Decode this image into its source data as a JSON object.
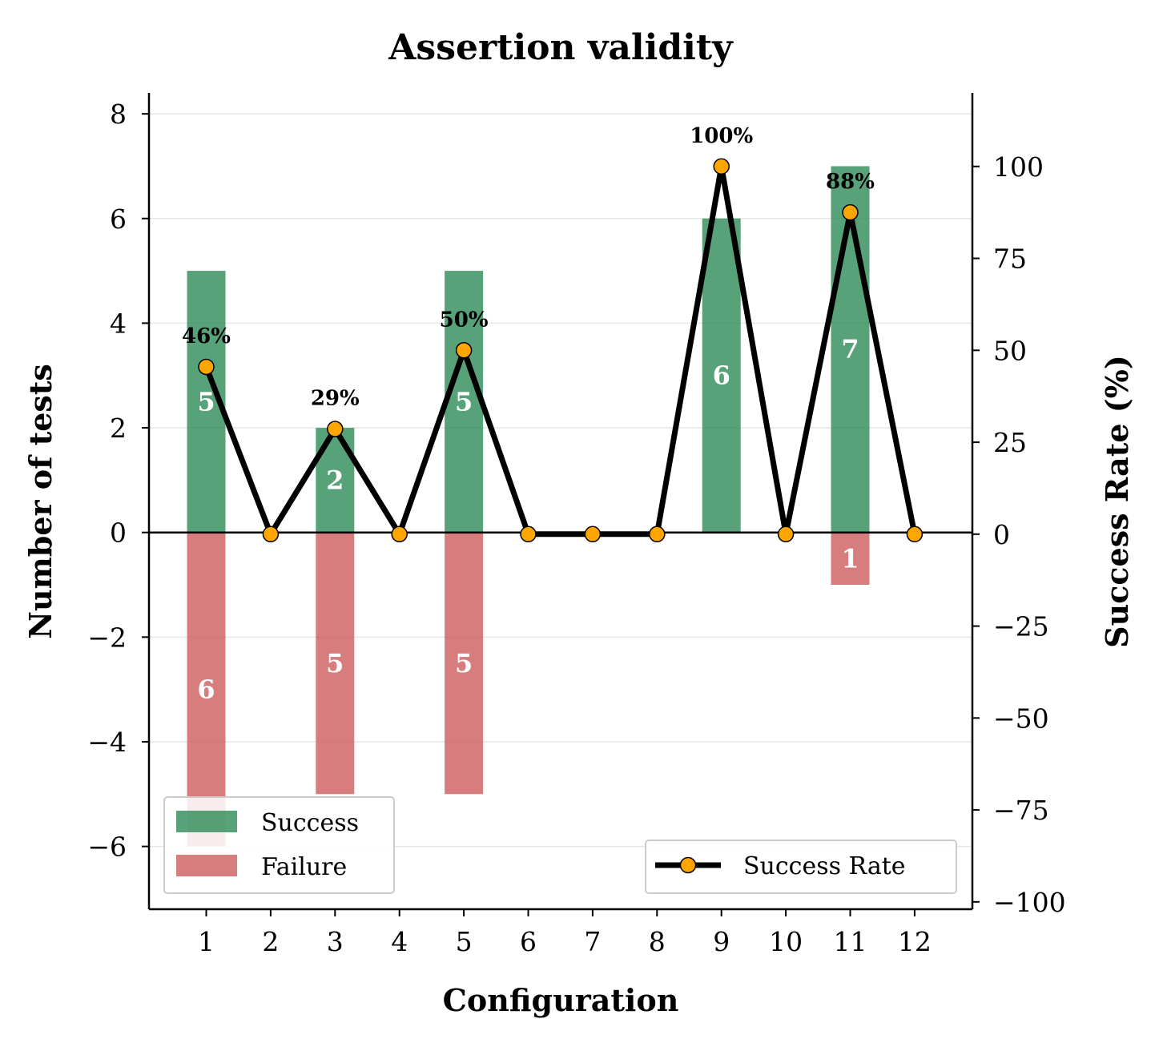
{
  "chart_data": {
    "type": "bar",
    "title": "Assertion validity",
    "xlabel": "Configuration",
    "ylabel": "Number of tests",
    "ylabel_right": "Success Rate (%)",
    "categories": [
      "1",
      "2",
      "3",
      "4",
      "5",
      "6",
      "7",
      "8",
      "9",
      "10",
      "11",
      "12"
    ],
    "series": [
      {
        "name": "Success",
        "values": [
          5,
          0,
          2,
          0,
          5,
          0,
          0,
          0,
          6,
          0,
          7,
          0
        ],
        "color": "#2e8b57",
        "kind": "bar"
      },
      {
        "name": "Failure",
        "values": [
          6,
          0,
          5,
          0,
          5,
          0,
          0,
          0,
          0,
          0,
          1,
          0
        ],
        "color": "#cd5c5c",
        "kind": "bar",
        "direction": "negative"
      },
      {
        "name": "Success Rate",
        "values": [
          45.5,
          0,
          28.6,
          0,
          50,
          0,
          0,
          0,
          100,
          0,
          87.5,
          0
        ],
        "color": "#000000",
        "marker_color": "#ffa500",
        "kind": "line",
        "axis": "right"
      }
    ],
    "rate_labels": [
      "46%",
      "",
      "29%",
      "",
      "50%",
      "",
      "",
      "",
      "100%",
      "",
      "88%",
      ""
    ],
    "y_left": {
      "ylim": [
        -7.2,
        8.4
      ],
      "ticks": [
        -6,
        -4,
        -2,
        0,
        2,
        4,
        6,
        8
      ],
      "tick_labels": [
        "−6",
        "−4",
        "−2",
        "0",
        "2",
        "4",
        "6",
        "8"
      ]
    },
    "y_right": {
      "ylim": [
        -102,
        120
      ],
      "ticks": [
        -100,
        -75,
        -50,
        -25,
        0,
        25,
        50,
        75,
        100
      ],
      "tick_labels": [
        "−100",
        "−75",
        "−50",
        "−25",
        "0",
        "25",
        "50",
        "75",
        "100"
      ]
    },
    "grid": true,
    "legends": [
      {
        "placement": "lower-left",
        "entries": [
          "Success",
          "Failure"
        ]
      },
      {
        "placement": "lower-right",
        "entries": [
          "Success Rate"
        ]
      }
    ]
  }
}
